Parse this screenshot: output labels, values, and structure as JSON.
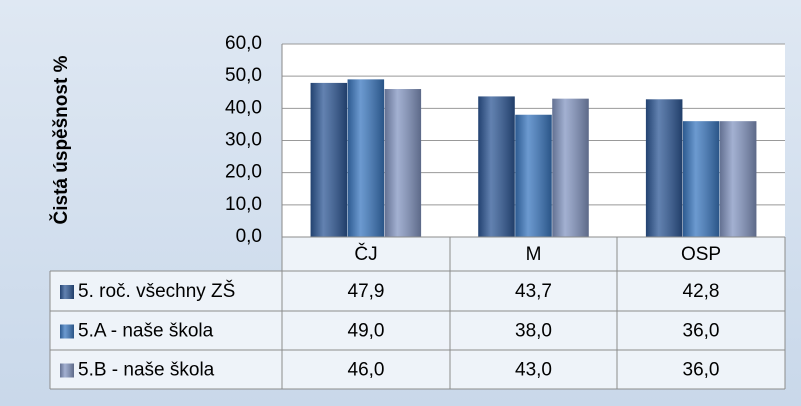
{
  "chart_data": {
    "type": "bar",
    "ylabel": "Čistá úspěšnost %",
    "categories": [
      "ČJ",
      "M",
      "OSP"
    ],
    "series": [
      {
        "name": "5. roč. všechny ZŠ",
        "color": "#2e5896",
        "values": [
          47.9,
          43.7,
          42.8
        ],
        "value_labels": [
          "47,9",
          "43,7",
          "42,8"
        ]
      },
      {
        "name": "5.A - naše škola",
        "color": "#3b78c0",
        "values": [
          49,
          38,
          36
        ],
        "value_labels": [
          "49,0",
          "38,0",
          "36,0"
        ]
      },
      {
        "name": "5.B - naše škola",
        "color": "#8496c2",
        "values": [
          46,
          43,
          36
        ],
        "value_labels": [
          "46,0",
          "43,0",
          "36,0"
        ]
      }
    ],
    "ylim": [
      0,
      60
    ],
    "yticks": [
      {
        "value": 0,
        "label": "0,0"
      },
      {
        "value": 10,
        "label": "10,0"
      },
      {
        "value": 20,
        "label": "20,0"
      },
      {
        "value": 30,
        "label": "30,0"
      },
      {
        "value": 40,
        "label": "40,0"
      },
      {
        "value": 50,
        "label": "50,0"
      },
      {
        "value": 60,
        "label": "60,0"
      }
    ],
    "grid": true
  }
}
